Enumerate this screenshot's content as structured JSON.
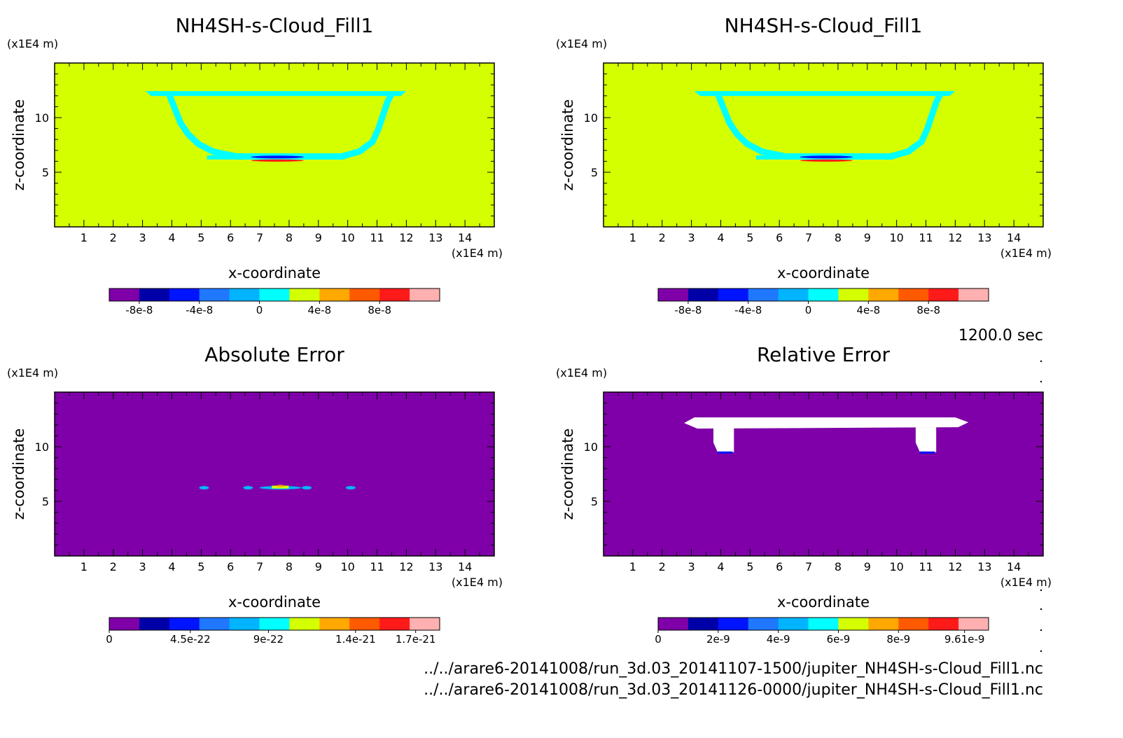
{
  "timestamp": "1200.0 sec",
  "files": [
    "../../arare6-20141008/run_3d.03_20141107-1500/jupiter_NH4SH-s-Cloud_Fill1.nc",
    "../../arare6-20141008/run_3d.03_20141126-0000/jupiter_NH4SH-s-Cloud_Fill1.nc"
  ],
  "colors": {
    "c0": "#7f00a8",
    "c1": "#0000a8",
    "c2": "#0014ff",
    "c3": "#1f78ff",
    "c4": "#00b4ff",
    "c5": "#00ffff",
    "c6": "#d4ff00",
    "c7": "#ffa800",
    "c8": "#ff5a00",
    "c9": "#ff1a1a",
    "c10": "#ffb0b0",
    "white": "#ffffff"
  },
  "chart_data": [
    {
      "type": "heatmap",
      "title": "NH4SH-s-Cloud_Fill1",
      "xlabel": "x-coordinate",
      "ylabel": "z-coordinate",
      "x_unit": "(x1E4 m)",
      "y_unit": "(x1E4 m)",
      "xlim": [
        0,
        15
      ],
      "ylim": [
        0,
        15
      ],
      "xticks": [
        1,
        2,
        3,
        4,
        5,
        6,
        7,
        8,
        9,
        10,
        11,
        12,
        13,
        14
      ],
      "yticks": [
        5,
        10
      ],
      "background": "c6",
      "features": [
        {
          "kind": "cloud-outline",
          "color": "c5",
          "top_z": 12.3,
          "bottom_z": 6.3,
          "x_left": 3.1,
          "x_right": 12.0
        },
        {
          "kind": "thin-layer",
          "colors": [
            "c2",
            "c9"
          ],
          "x": [
            6.7,
            8.5
          ],
          "z": 6.2
        }
      ],
      "colorbar": {
        "colors": [
          "c0",
          "c1",
          "c2",
          "c3",
          "c4",
          "c5",
          "c6",
          "c7",
          "c8",
          "c9",
          "c10"
        ],
        "ticklabels": [
          "-8e-8",
          "-4e-8",
          "0",
          "4e-8",
          "8e-8"
        ]
      }
    },
    {
      "type": "heatmap",
      "title": "NH4SH-s-Cloud_Fill1",
      "xlabel": "x-coordinate",
      "ylabel": "z-coordinate",
      "x_unit": "(x1E4 m)",
      "y_unit": "(x1E4 m)",
      "xlim": [
        0,
        15
      ],
      "ylim": [
        0,
        15
      ],
      "xticks": [
        1,
        2,
        3,
        4,
        5,
        6,
        7,
        8,
        9,
        10,
        11,
        12,
        13,
        14
      ],
      "yticks": [
        5,
        10
      ],
      "background": "c6",
      "features": [
        {
          "kind": "cloud-outline",
          "color": "c5",
          "top_z": 12.3,
          "bottom_z": 6.3,
          "x_left": 3.1,
          "x_right": 12.0
        },
        {
          "kind": "thin-layer",
          "colors": [
            "c2",
            "c9"
          ],
          "x": [
            6.7,
            8.5
          ],
          "z": 6.2
        }
      ],
      "colorbar": {
        "colors": [
          "c0",
          "c1",
          "c2",
          "c3",
          "c4",
          "c5",
          "c6",
          "c7",
          "c8",
          "c9",
          "c10"
        ],
        "ticklabels": [
          "-8e-8",
          "-4e-8",
          "0",
          "4e-8",
          "8e-8"
        ]
      }
    },
    {
      "type": "heatmap",
      "title": "Absolute Error",
      "xlabel": "x-coordinate",
      "ylabel": "z-coordinate",
      "x_unit": "(x1E4 m)",
      "y_unit": "(x1E4 m)",
      "xlim": [
        0,
        15
      ],
      "ylim": [
        0,
        15
      ],
      "xticks": [
        1,
        2,
        3,
        4,
        5,
        6,
        7,
        8,
        9,
        10,
        11,
        12,
        13,
        14
      ],
      "yticks": [
        5,
        10
      ],
      "background": "c0",
      "features": [
        {
          "kind": "speckles",
          "z": 6.5,
          "x": [
            5.1,
            6.6,
            7.7,
            8.6,
            10.1
          ]
        }
      ],
      "colorbar": {
        "colors": [
          "c0",
          "c1",
          "c2",
          "c3",
          "c4",
          "c5",
          "c6",
          "c7",
          "c8",
          "c9",
          "c10"
        ],
        "ticklabels": [
          "0",
          "4.5e-22",
          "9e-22",
          "1.4e-21",
          "1.7e-21"
        ]
      }
    },
    {
      "type": "heatmap",
      "title": "Relative Error",
      "xlabel": "x-coordinate",
      "ylabel": "z-coordinate",
      "x_unit": "(x1E4 m)",
      "y_unit": "(x1E4 m)",
      "xlim": [
        0,
        15
      ],
      "ylim": [
        0,
        15
      ],
      "xticks": [
        1,
        2,
        3,
        4,
        5,
        6,
        7,
        8,
        9,
        10,
        11,
        12,
        13,
        14
      ],
      "yticks": [
        5,
        10
      ],
      "background": "c0",
      "features": [
        {
          "kind": "undefined-region",
          "color": "white",
          "top_z": 12.3,
          "legs_x": [
            4.1,
            11.0
          ],
          "leg_bottom_z": 9.5
        }
      ],
      "colorbar": {
        "colors": [
          "c0",
          "c1",
          "c2",
          "c3",
          "c4",
          "c5",
          "c6",
          "c7",
          "c8",
          "c9",
          "c10"
        ],
        "ticklabels": [
          "0",
          "2e-9",
          "4e-9",
          "6e-9",
          "8e-9",
          "9.61e-9"
        ]
      }
    }
  ]
}
